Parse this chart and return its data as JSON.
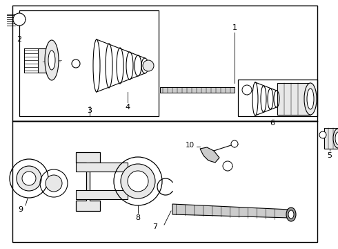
{
  "background_color": "#ffffff",
  "fig_width": 4.9,
  "fig_height": 3.6,
  "dpi": 100,
  "line_color": "#000000",
  "gray_fill": "#e8e8e8",
  "mid_gray": "#cccccc",
  "dark_gray": "#999999"
}
